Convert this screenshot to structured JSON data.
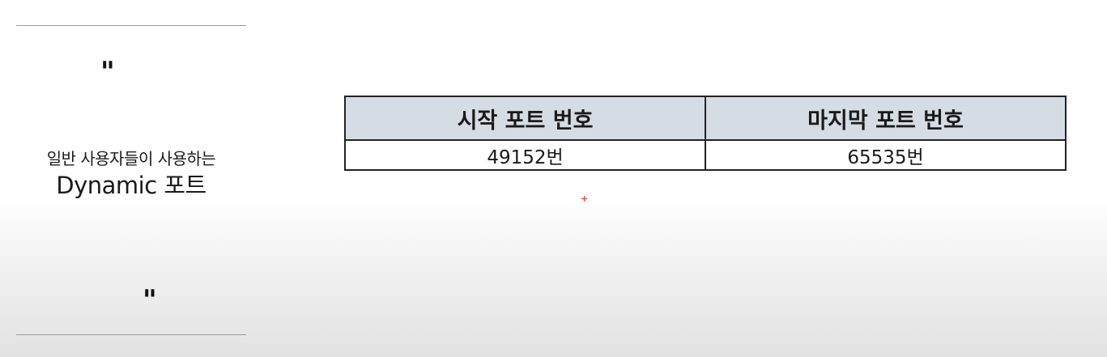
{
  "quote": {
    "open_mark": "\"",
    "close_mark": "\"",
    "line1": "일반 사용자들이 사용하는",
    "line2": "Dynamic 포트"
  },
  "port_table": {
    "headers": [
      "시작 포트 번호",
      "마지막 포트 번호"
    ],
    "rows": [
      [
        "49152번",
        "65535번"
      ]
    ],
    "header_background": "#d6dce4"
  },
  "cursor": {
    "icon": "crosshair-icon",
    "color": "#d23030"
  }
}
